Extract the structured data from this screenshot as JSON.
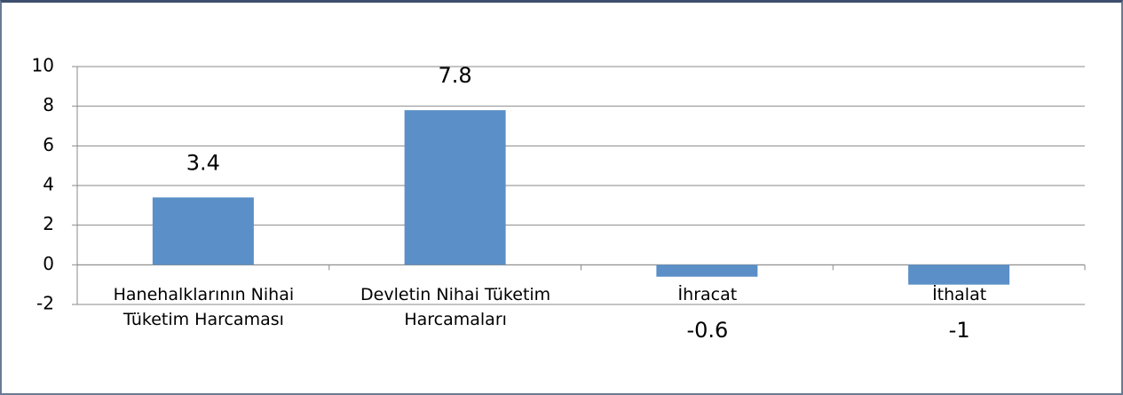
{
  "chart_data": {
    "type": "bar",
    "categories": [
      "Hanehalklarının Nihai Tüketim Harcaması",
      "Devletin Nihai Tüketim Harcamaları",
      "İhracat",
      "İthalat"
    ],
    "values": [
      3.4,
      7.8,
      -0.6,
      -1
    ],
    "color": "#5b8fc7",
    "ylim": [
      -2,
      10
    ],
    "yticks": [
      -2,
      0,
      2,
      4,
      6,
      8,
      10
    ],
    "grid": true
  }
}
